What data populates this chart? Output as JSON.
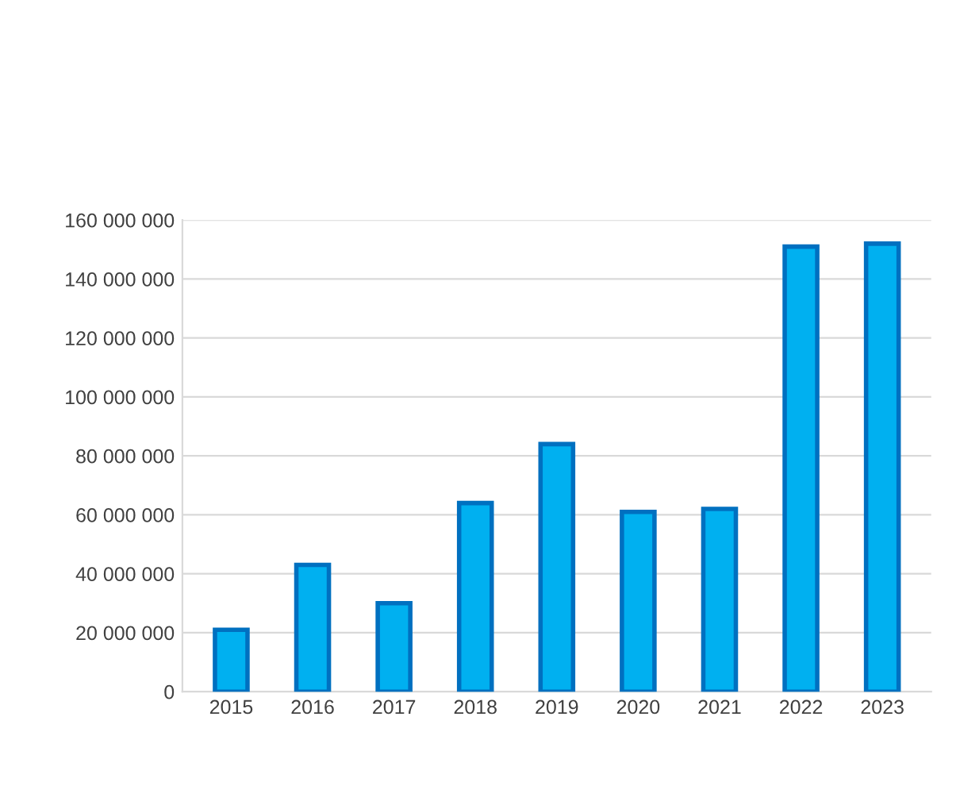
{
  "chart_data": {
    "type": "bar",
    "categories": [
      "2015",
      "2016",
      "2017",
      "2018",
      "2019",
      "2020",
      "2021",
      "2022",
      "2023"
    ],
    "values": [
      21000000,
      43000000,
      30000000,
      64000000,
      84000000,
      61000000,
      62000000,
      151000000,
      152000000
    ],
    "color": "#00b0f0",
    "ylim": [
      0,
      160000000
    ],
    "yticks": [
      {
        "value": 0,
        "label": "0"
      },
      {
        "value": 20000000,
        "label": "20 000 000"
      },
      {
        "value": 40000000,
        "label": "40 000 000"
      },
      {
        "value": 60000000,
        "label": "60 000 000"
      },
      {
        "value": 80000000,
        "label": "80 000 000"
      },
      {
        "value": 100000000,
        "label": "100 000 000"
      },
      {
        "value": 120000000,
        "label": "120 000 000"
      },
      {
        "value": 140000000,
        "label": "140 000 000"
      },
      {
        "value": 160000000,
        "label": "160 000 000"
      }
    ],
    "grid": "y",
    "legend": false
  }
}
